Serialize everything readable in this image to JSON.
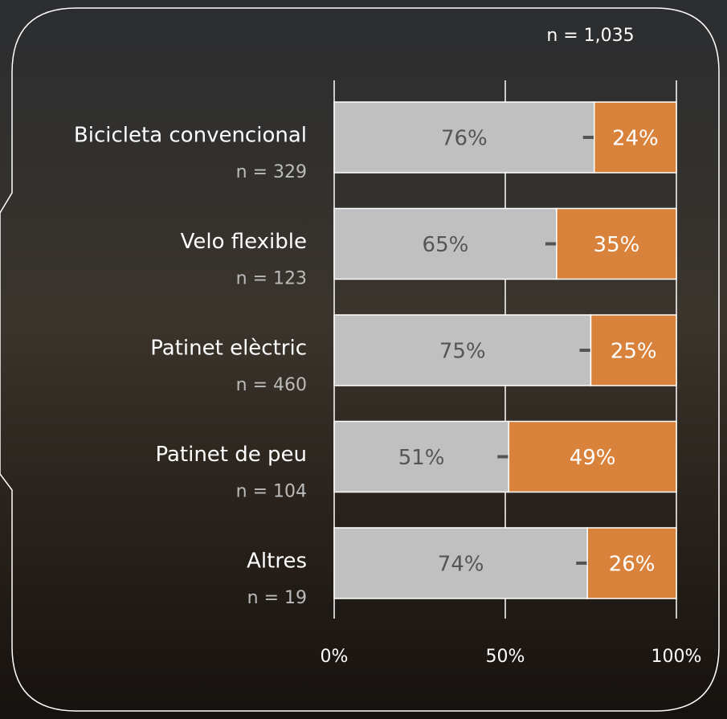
{
  "chart_data": {
    "type": "stacked-bar-horizontal",
    "total_label": "n = 1,035",
    "categories": [
      "Bicicleta convencional",
      "Velo flexible",
      "Patinet elèctric",
      "Patinet de peu",
      "Altres"
    ],
    "category_notes": [
      "n = 329",
      "n = 123",
      "n = 460",
      "n = 104",
      "n = 19"
    ],
    "series": [
      {
        "color": "#c0c0c0",
        "label_color": "#555555",
        "values": [
          76,
          65,
          75,
          51,
          74
        ],
        "value_labels": [
          "76%",
          "65%",
          "75%",
          "51%",
          "74%"
        ]
      },
      {
        "color": "#d9823b",
        "label_color": "#ffffff",
        "values": [
          24,
          35,
          25,
          49,
          26
        ],
        "value_labels": [
          "24%",
          "35%",
          "25%",
          "49%",
          "26%"
        ]
      }
    ],
    "xlim": [
      0,
      100
    ],
    "xticks": [
      {
        "value": 0,
        "label": "0%"
      },
      {
        "value": 50,
        "label": "50%"
      },
      {
        "value": 100,
        "label": "100%"
      }
    ],
    "grid": true
  }
}
